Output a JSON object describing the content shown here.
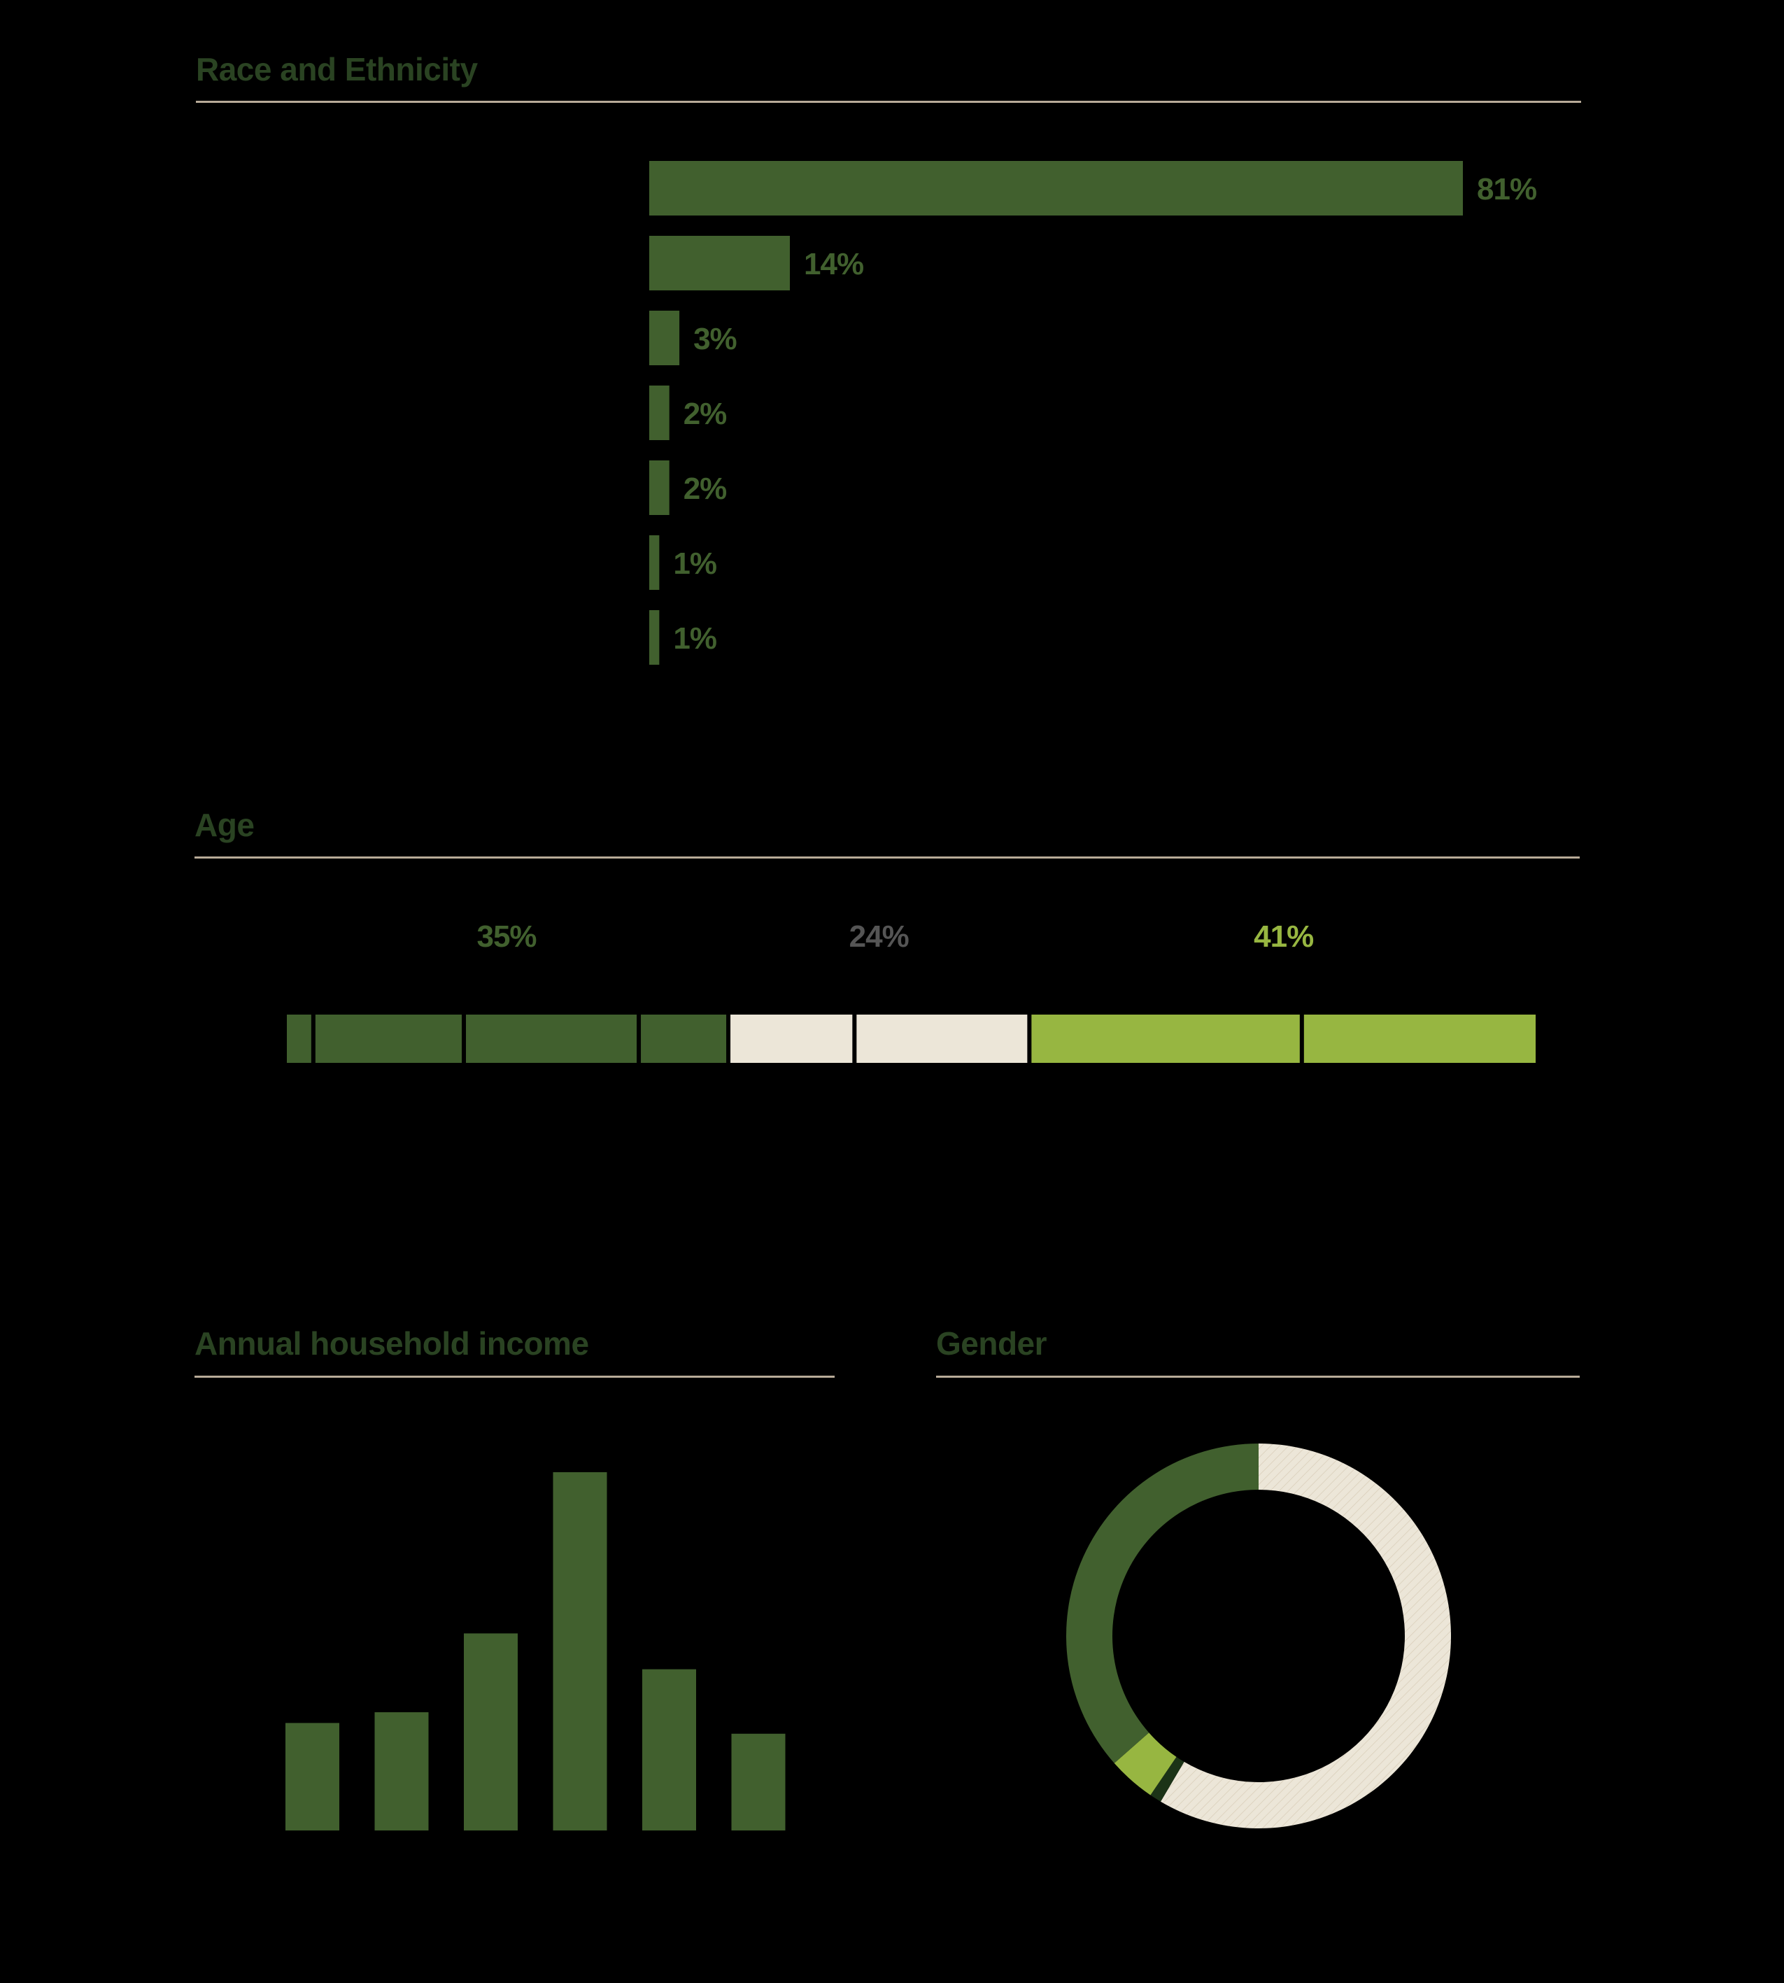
{
  "colors": {
    "background": "#000000",
    "dark_green": "#41602e",
    "cream": "#ece6d8",
    "light_green": "#97b641",
    "rule": "#b8ab98",
    "title": "#2a4322",
    "mid_label": "#555555"
  },
  "sections": {
    "race": "Race and Ethnicity",
    "age": "Age",
    "income": "Annual household income",
    "gender": "Gender"
  },
  "chart_data": [
    {
      "type": "bar",
      "orientation": "horizontal",
      "title": "Race and Ethnicity",
      "categories": [
        "",
        "",
        "",
        "",
        "",
        "",
        ""
      ],
      "values": [
        81,
        14,
        3,
        2,
        2,
        1,
        1
      ],
      "value_labels": [
        "81%",
        "14%",
        "3%",
        "2%",
        "2%",
        "1%",
        "1%"
      ],
      "unit": "%",
      "grid": false
    },
    {
      "type": "bar",
      "orientation": "stacked-horizontal",
      "title": "Age",
      "segments": [
        {
          "group": 0,
          "value": 2
        },
        {
          "group": 0,
          "value": 12
        },
        {
          "group": 0,
          "value": 14
        },
        {
          "group": 0,
          "value": 7
        },
        {
          "group": 1,
          "value": 10
        },
        {
          "group": 1,
          "value": 14
        },
        {
          "group": 2,
          "value": 22
        },
        {
          "group": 2,
          "value": 19
        }
      ],
      "groups": [
        {
          "label": "35%",
          "value": 35,
          "color": "#41602e",
          "label_color": "#41602e"
        },
        {
          "label": "24%",
          "value": 24,
          "color": "#ece6d8",
          "label_color": "#555555"
        },
        {
          "label": "41%",
          "value": 41,
          "color": "#97b641",
          "label_color": "#97b641"
        }
      ],
      "grid": false
    },
    {
      "type": "bar",
      "title": "Annual household income",
      "categories": [
        "",
        "",
        "",
        "",
        "",
        ""
      ],
      "values": [
        15,
        16.5,
        27.5,
        50,
        22.5,
        13.5
      ],
      "ylim": [
        0,
        50
      ],
      "grid": false
    },
    {
      "type": "pie",
      "variant": "donut",
      "title": "Gender",
      "slices": [
        {
          "value": 58.5,
          "color": "#ece6d8"
        },
        {
          "value": 1,
          "color": "#1b3317"
        },
        {
          "value": 4,
          "color": "#97b641"
        },
        {
          "value": 36.5,
          "color": "#41602e"
        }
      ]
    }
  ]
}
